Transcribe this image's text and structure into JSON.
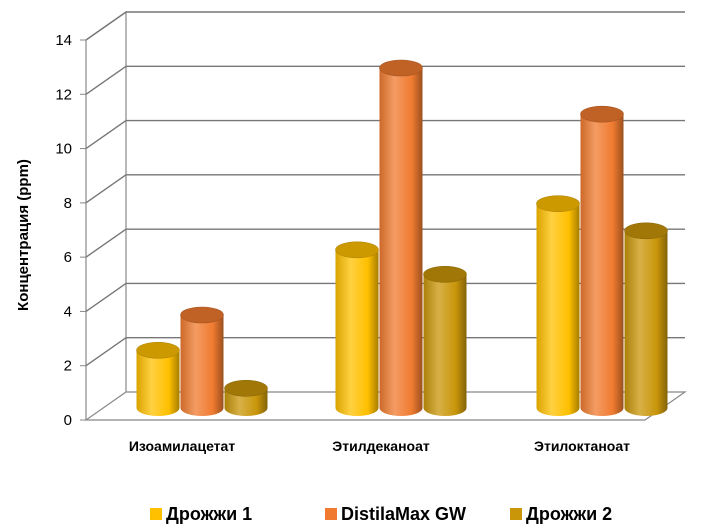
{
  "chart_data": {
    "type": "bar",
    "categories": [
      "Изоамилацетат",
      "Этилдеканоат",
      "Этилоктаноат"
    ],
    "series": [
      {
        "name": "Дрожжи 1",
        "values": [
          2.2,
          5.9,
          7.6
        ],
        "color": "#FFC000"
      },
      {
        "name": "DistilaMax GW",
        "values": [
          3.5,
          12.6,
          10.9
        ],
        "color": "#F07B30"
      },
      {
        "name": "Дрожжи 2",
        "values": [
          0.8,
          5.0,
          6.6
        ],
        "color": "#C9960A"
      }
    ],
    "ylabel": "Концентрация (ppm)",
    "ylim": [
      0,
      14
    ],
    "yticks": [
      0,
      2,
      4,
      6,
      8,
      10,
      12,
      14
    ],
    "grid": true,
    "legend": "bottom",
    "style": "3d-cylinder"
  }
}
